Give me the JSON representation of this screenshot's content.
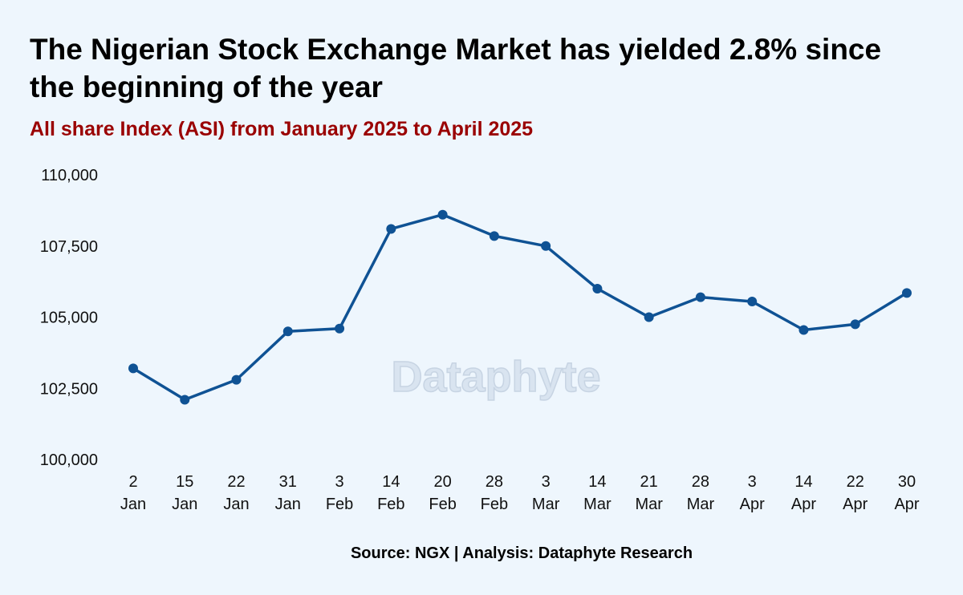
{
  "header": {
    "title": "The Nigerian Stock Exchange Market has yielded 2.8% since the beginning of the year",
    "subtitle": "All share Index (ASI) from January 2025 to April 2025"
  },
  "watermark": "Dataphyte",
  "footer": {
    "source": "Source: NGX | Analysis: Dataphyte Research"
  },
  "colors": {
    "line": "#0f5294",
    "background": "#eef6fd",
    "subtitle": "#9a0000"
  },
  "chart_data": {
    "type": "line",
    "title": "The Nigerian Stock Exchange Market has yielded 2.8% since the beginning of the year",
    "subtitle": "All share Index (ASI) from January 2025 to April 2025",
    "xlabel": "",
    "ylabel": "",
    "categories": [
      [
        "2",
        "Jan"
      ],
      [
        "15",
        "Jan"
      ],
      [
        "22",
        "Jan"
      ],
      [
        "31",
        "Jan"
      ],
      [
        "3",
        "Feb"
      ],
      [
        "14",
        "Feb"
      ],
      [
        "20",
        "Feb"
      ],
      [
        "28",
        "Feb"
      ],
      [
        "3",
        "Mar"
      ],
      [
        "14",
        "Mar"
      ],
      [
        "21",
        "Mar"
      ],
      [
        "28",
        "Mar"
      ],
      [
        "3",
        "Apr"
      ],
      [
        "14",
        "Apr"
      ],
      [
        "22",
        "Apr"
      ],
      [
        "30",
        "Apr"
      ]
    ],
    "series": [
      {
        "values": [
          103200,
          102100,
          102800,
          104500,
          104600,
          108100,
          108600,
          107850,
          107500,
          106000,
          105000,
          105700,
          105550,
          104550,
          104750,
          105850
        ]
      }
    ],
    "ylim": [
      100000,
      110000
    ],
    "yticks": [
      100000,
      102500,
      105000,
      107500,
      110000
    ],
    "ytick_labels": [
      "100,000",
      "102,500",
      "105,000",
      "107,500",
      "110,000"
    ],
    "grid": false,
    "legend": "none"
  }
}
